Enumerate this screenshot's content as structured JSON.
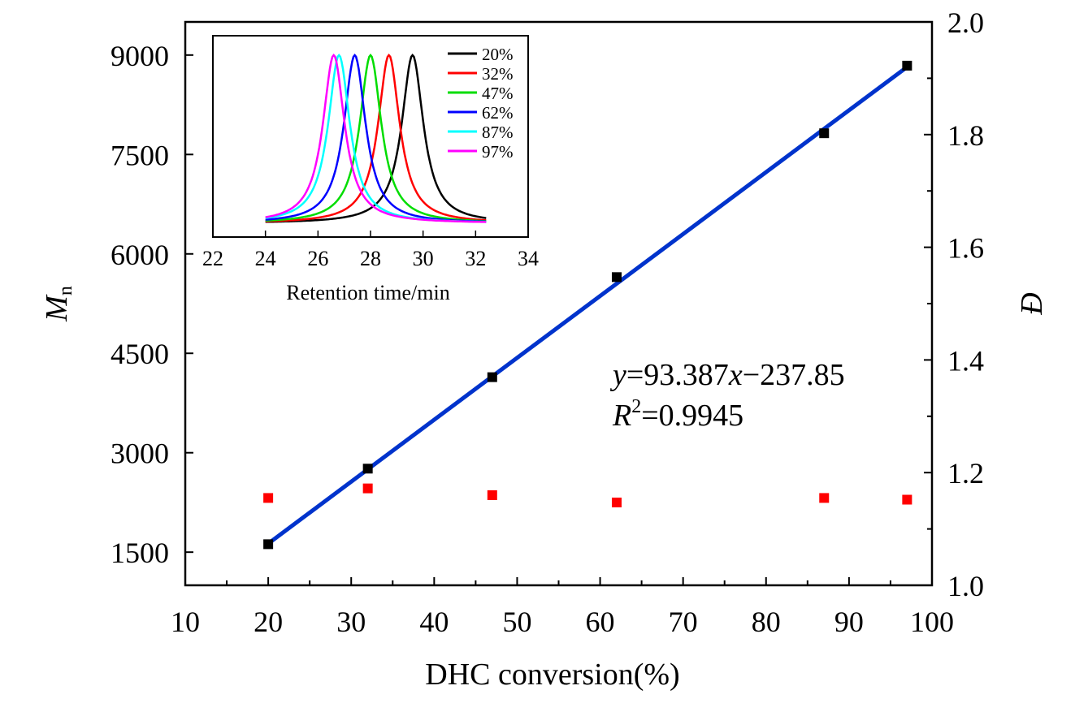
{
  "chart_data": {
    "type": "scatter",
    "xlabel": "DHC conversion(%)",
    "ylabel_main": "M",
    "ylabel_sub": "n",
    "y2label": "Đ",
    "xlim": [
      10,
      100
    ],
    "ylim": [
      1000,
      9500
    ],
    "y2lim": [
      1.0,
      2.0
    ],
    "xticks": [
      10,
      20,
      30,
      40,
      50,
      60,
      70,
      80,
      90,
      100
    ],
    "yticks": [
      1500,
      3000,
      4500,
      6000,
      7500,
      9000
    ],
    "y2ticks": [
      "1.0",
      "1.2",
      "1.4",
      "1.6",
      "1.8",
      "2.0"
    ],
    "series": [
      {
        "name": "Mn",
        "color": "#000000",
        "x": [
          20,
          32,
          47,
          62,
          87,
          97
        ],
        "y": [
          1620,
          2760,
          4140,
          5650,
          7820,
          8840
        ]
      },
      {
        "name": "Đ",
        "color": "#ff0000",
        "axis": "right",
        "x": [
          20,
          32,
          47,
          62,
          87,
          97
        ],
        "y": [
          1.155,
          1.172,
          1.16,
          1.147,
          1.155,
          1.152
        ]
      }
    ],
    "fit": {
      "color": "#0033cc",
      "slope": 93.387,
      "intercept": -237.85,
      "x_range": [
        20,
        97
      ],
      "equation_parts": [
        "y",
        "=93.387",
        "x",
        "−237.85"
      ],
      "r2_parts": [
        "R",
        "2",
        "=0.9945"
      ]
    },
    "inset": {
      "type": "line",
      "xlabel": "Retention time/min",
      "xlim": [
        22,
        34
      ],
      "xticks": [
        22,
        24,
        26,
        28,
        30,
        32,
        34
      ],
      "series": [
        {
          "name": "20%",
          "color": "#000000",
          "peak": 29.6,
          "sigma": 0.5
        },
        {
          "name": "32%",
          "color": "#ff0000",
          "peak": 28.7,
          "sigma": 0.5
        },
        {
          "name": "47%",
          "color": "#00dd00",
          "peak": 28.0,
          "sigma": 0.5
        },
        {
          "name": "62%",
          "color": "#0000ff",
          "peak": 27.4,
          "sigma": 0.5
        },
        {
          "name": "87%",
          "color": "#00ffff",
          "peak": 26.8,
          "sigma": 0.5
        },
        {
          "name": "97%",
          "color": "#ff00ff",
          "peak": 26.6,
          "sigma": 0.5
        }
      ]
    }
  }
}
